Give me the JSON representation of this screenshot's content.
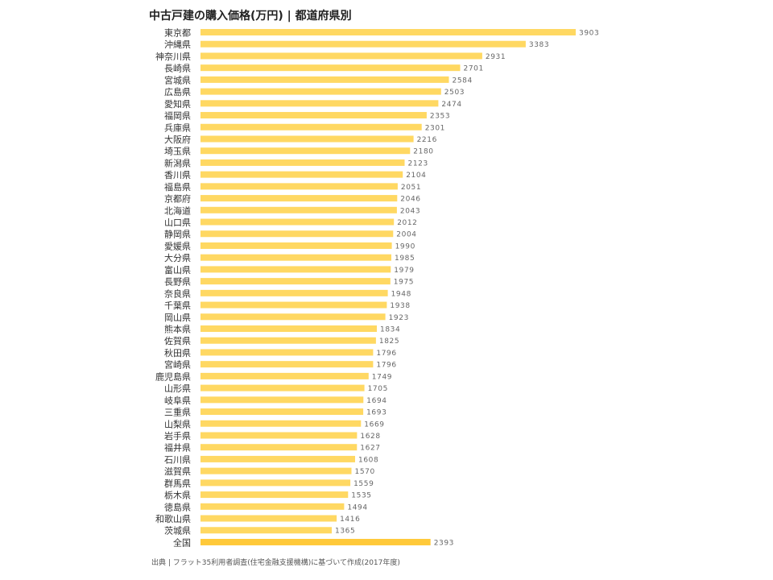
{
  "title": "中古戸建の購入価格(万円) | 都道府県別",
  "source": "出典 | フラット35利用者調査(住宅金融支援機構)に基づいて作成(2017年度)",
  "colors": {
    "bar": "#FFD862",
    "bar_total": "#FFC93A",
    "label": "#333333",
    "value": "#666666"
  },
  "chart_data": {
    "type": "bar",
    "orientation": "horizontal",
    "title": "中古戸建の購入価格(万円) | 都道府県別",
    "categories": [
      "東京都",
      "沖縄県",
      "神奈川県",
      "長崎県",
      "宮城県",
      "広島県",
      "愛知県",
      "福岡県",
      "兵庫県",
      "大阪府",
      "埼玉県",
      "新潟県",
      "香川県",
      "福島県",
      "京都府",
      "北海道",
      "山口県",
      "静岡県",
      "愛媛県",
      "大分県",
      "富山県",
      "長野県",
      "奈良県",
      "千葉県",
      "岡山県",
      "熊本県",
      "佐賀県",
      "秋田県",
      "宮崎県",
      "鹿児島県",
      "山形県",
      "岐阜県",
      "三重県",
      "山梨県",
      "岩手県",
      "福井県",
      "石川県",
      "滋賀県",
      "群馬県",
      "栃木県",
      "徳島県",
      "和歌山県",
      "茨城県",
      "全国"
    ],
    "values": [
      3903,
      3383,
      2931,
      2701,
      2584,
      2503,
      2474,
      2353,
      2301,
      2216,
      2180,
      2123,
      2104,
      2051,
      2046,
      2043,
      2012,
      2004,
      1990,
      1985,
      1979,
      1975,
      1948,
      1938,
      1923,
      1834,
      1825,
      1796,
      1796,
      1749,
      1705,
      1694,
      1693,
      1669,
      1628,
      1627,
      1608,
      1570,
      1559,
      1535,
      1494,
      1416,
      1365,
      2393
    ],
    "xlim": [
      0,
      3903
    ],
    "grid": false,
    "data_labels": true
  }
}
